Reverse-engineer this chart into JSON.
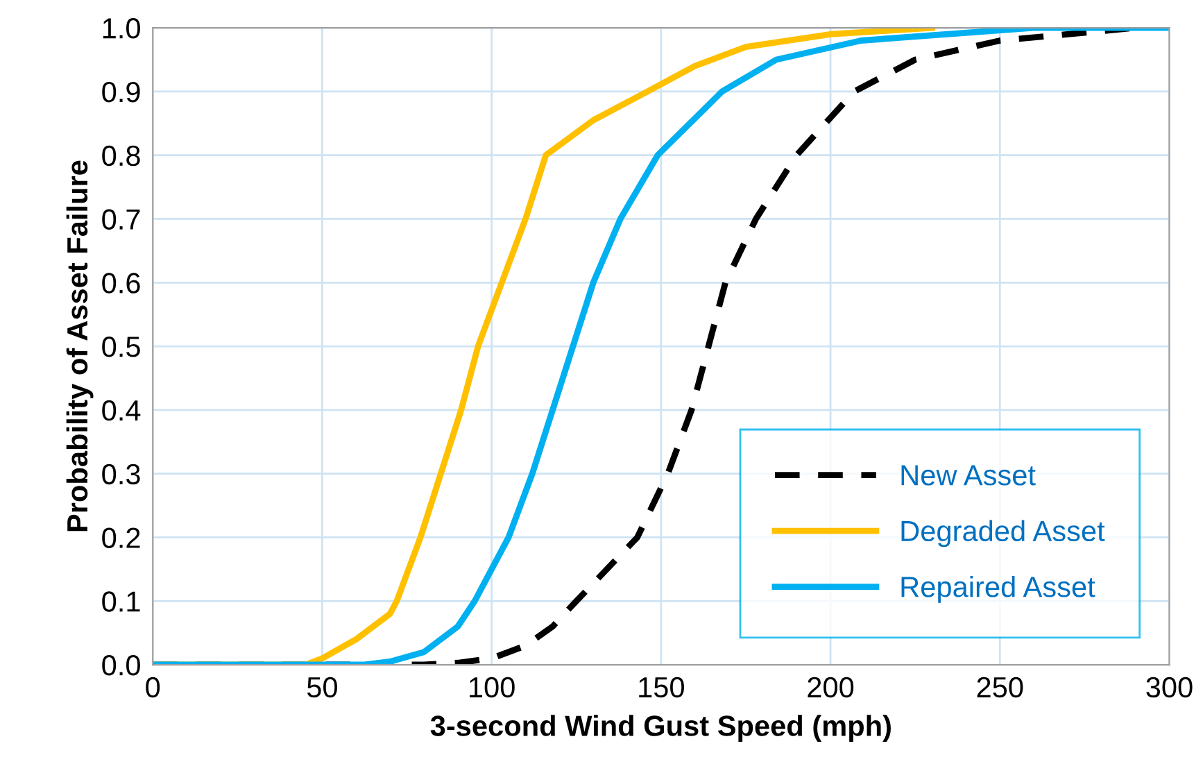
{
  "chart_data": {
    "type": "line",
    "xlabel": "3-second Wind Gust Speed (mph)",
    "ylabel": "Probability of Asset Failure",
    "xlim": [
      0,
      300
    ],
    "xticks": [
      0,
      50,
      100,
      150,
      200,
      250,
      300
    ],
    "ylim": [
      0,
      1
    ],
    "yticks": [
      {
        "value": 0,
        "label": "0.0"
      },
      {
        "value": 0.1,
        "label": "0.1"
      },
      {
        "value": 0.2,
        "label": "0.2"
      },
      {
        "value": 0.3,
        "label": "0.3"
      },
      {
        "value": 0.4,
        "label": "0.4"
      },
      {
        "value": 0.5,
        "label": "0.5"
      },
      {
        "value": 0.6,
        "label": "0.6"
      },
      {
        "value": 0.7,
        "label": "0.7"
      },
      {
        "value": 0.8,
        "label": "0.8"
      },
      {
        "value": 0.9,
        "label": "0.9"
      },
      {
        "value": 1,
        "label": "1.0"
      }
    ],
    "grid": true,
    "legend": "bottom right",
    "marker": "none",
    "series": [
      {
        "name": "New Asset",
        "color": "#000000",
        "line_style": "dashed",
        "x": [
          0,
          80,
          90,
          100,
          110,
          118,
          125,
          143,
          152,
          159,
          164,
          169,
          178,
          190,
          207,
          225,
          250,
          290
        ],
        "values": [
          0,
          0,
          0.003,
          0.01,
          0.03,
          0.06,
          0.1,
          0.2,
          0.3,
          0.4,
          0.5,
          0.6,
          0.7,
          0.8,
          0.9,
          0.95,
          0.98,
          1
        ]
      },
      {
        "name": "Degraded Asset",
        "color": "#ffc000",
        "line_style": "solid",
        "x": [
          0,
          45,
          50,
          60,
          70,
          72,
          79,
          85,
          91,
          96,
          103,
          110,
          116,
          130,
          146,
          160,
          175,
          200,
          230
        ],
        "values": [
          0,
          0,
          0.01,
          0.04,
          0.08,
          0.1,
          0.2,
          0.3,
          0.4,
          0.5,
          0.6,
          0.7,
          0.8,
          0.855,
          0.9,
          0.94,
          0.97,
          0.99,
          1
        ]
      },
      {
        "name": "Repaired Asset",
        "color": "#00b0f0",
        "line_style": "solid",
        "x": [
          0,
          62,
          70,
          80,
          90,
          95,
          105,
          112,
          118,
          124,
          130,
          138,
          149,
          168,
          184,
          209,
          260,
          300
        ],
        "values": [
          0,
          0,
          0.005,
          0.02,
          0.06,
          0.1,
          0.2,
          0.3,
          0.4,
          0.5,
          0.6,
          0.7,
          0.8,
          0.9,
          0.95,
          0.98,
          1,
          1
        ]
      }
    ]
  }
}
